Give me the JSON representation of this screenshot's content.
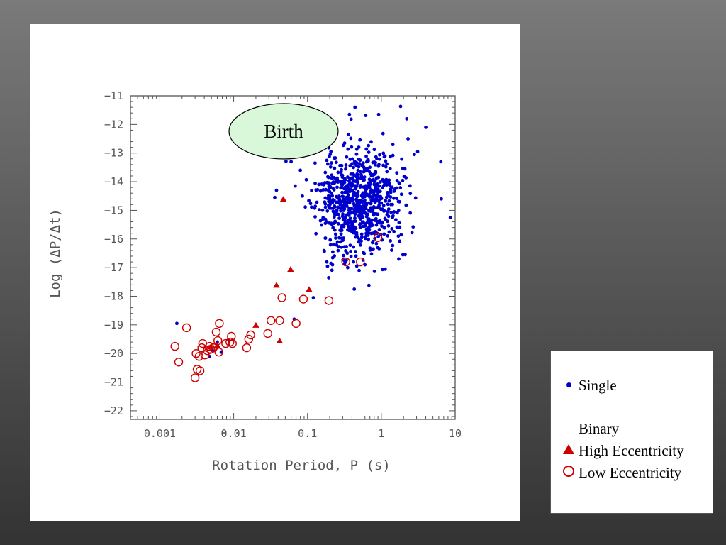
{
  "chart_data": {
    "type": "scatter",
    "xlabel": "Rotation Period, P (s)",
    "ylabel": "Log (ΔP/Δt)",
    "xscale": "log",
    "xlim": [
      0.0004,
      10
    ],
    "ylim": [
      -22.3,
      -11
    ],
    "xticks": [
      0.001,
      0.01,
      0.1,
      1,
      10
    ],
    "xtick_labels": [
      "0.001",
      "0.01",
      "0.1",
      "1",
      "10"
    ],
    "yticks": [
      -11,
      -12,
      -13,
      -14,
      -15,
      -16,
      -17,
      -18,
      -19,
      -20,
      -21,
      -22
    ],
    "ytick_labels": [
      "−11",
      "−12",
      "−13",
      "−14",
      "−15",
      "−16",
      "−17",
      "−18",
      "−19",
      "−20",
      "−21",
      "−22"
    ],
    "annotation": {
      "text": "Birth",
      "x": 0.16,
      "y": -12.25,
      "color": "#d9f7d9"
    },
    "series": [
      {
        "name": "Single",
        "marker": "dot",
        "color": "#0000cc",
        "cluster": {
          "n": 800,
          "center_log_p": -0.32,
          "sigma_log_p": 0.28,
          "center_y": -14.65,
          "sigma_y": 0.95,
          "seed": 11
        },
        "points": [
          [
            0.0017,
            -18.95
          ],
          [
            0.0047,
            -20.1
          ],
          [
            0.0052,
            -19.9
          ],
          [
            0.006,
            -19.6
          ],
          [
            0.0068,
            -19.95
          ],
          [
            0.0087,
            -19.55
          ],
          [
            0.066,
            -18.8
          ],
          [
            0.12,
            -18.05
          ],
          [
            0.42,
            -16.8
          ],
          [
            0.43,
            -17.75
          ],
          [
            0.35,
            -17.0
          ],
          [
            0.22,
            -16.45
          ],
          [
            8.6,
            -15.25
          ],
          [
            4.0,
            -12.1
          ],
          [
            6.4,
            -13.3
          ],
          [
            0.92,
            -11.65
          ],
          [
            0.44,
            -11.4
          ],
          [
            0.038,
            -14.3
          ],
          [
            0.036,
            -14.55
          ],
          [
            0.06,
            -13.3
          ],
          [
            0.061,
            -13.0
          ],
          [
            0.068,
            -14.15
          ],
          [
            0.08,
            -13.6
          ],
          [
            2.3,
            -12.5
          ],
          [
            2.8,
            -13.05
          ],
          [
            6.5,
            -14.6
          ],
          [
            1.7,
            -15.9
          ],
          [
            0.6,
            -16.9
          ],
          [
            0.5,
            -17.1
          ],
          [
            0.28,
            -16.1
          ]
        ]
      },
      {
        "name": "High Eccentricity",
        "marker": "triangle",
        "color": "#cc0000",
        "points": [
          [
            0.047,
            -14.6
          ],
          [
            0.059,
            -17.05
          ],
          [
            0.038,
            -17.6
          ],
          [
            0.105,
            -17.75
          ],
          [
            0.02,
            -19.0
          ],
          [
            0.042,
            -19.55
          ],
          [
            0.006,
            -19.7
          ],
          [
            0.0049,
            -19.75
          ]
        ]
      },
      {
        "name": "Low Eccentricity",
        "marker": "circle",
        "color": "#cc0000",
        "points": [
          [
            0.0016,
            -19.75
          ],
          [
            0.0018,
            -20.3
          ],
          [
            0.0023,
            -19.1
          ],
          [
            0.003,
            -20.85
          ],
          [
            0.0031,
            -20.0
          ],
          [
            0.0032,
            -20.55
          ],
          [
            0.0035,
            -20.6
          ],
          [
            0.0034,
            -20.1
          ],
          [
            0.0037,
            -19.8
          ],
          [
            0.0038,
            -19.65
          ],
          [
            0.0041,
            -20.05
          ],
          [
            0.0044,
            -19.9
          ],
          [
            0.0047,
            -19.75
          ],
          [
            0.0049,
            -19.85
          ],
          [
            0.0053,
            -19.8
          ],
          [
            0.0058,
            -19.25
          ],
          [
            0.0061,
            -19.55
          ],
          [
            0.0063,
            -19.95
          ],
          [
            0.0064,
            -18.95
          ],
          [
            0.0078,
            -19.65
          ],
          [
            0.0089,
            -19.6
          ],
          [
            0.0093,
            -19.4
          ],
          [
            0.0096,
            -19.65
          ],
          [
            0.015,
            -19.8
          ],
          [
            0.016,
            -19.5
          ],
          [
            0.017,
            -19.35
          ],
          [
            0.029,
            -19.3
          ],
          [
            0.032,
            -18.85
          ],
          [
            0.042,
            -18.85
          ],
          [
            0.045,
            -18.05
          ],
          [
            0.07,
            -18.95
          ],
          [
            0.088,
            -18.1
          ],
          [
            0.195,
            -18.15
          ],
          [
            0.33,
            -16.8
          ],
          [
            0.52,
            -16.8
          ],
          [
            0.9,
            -15.95
          ]
        ]
      }
    ]
  },
  "legend": {
    "single_label": "Single",
    "binary_heading": "Binary",
    "high_ecc_label": "High Eccentricity",
    "low_ecc_label": "Low Eccentricity",
    "single_color": "#0000cc",
    "binary_color": "#cc0000"
  }
}
